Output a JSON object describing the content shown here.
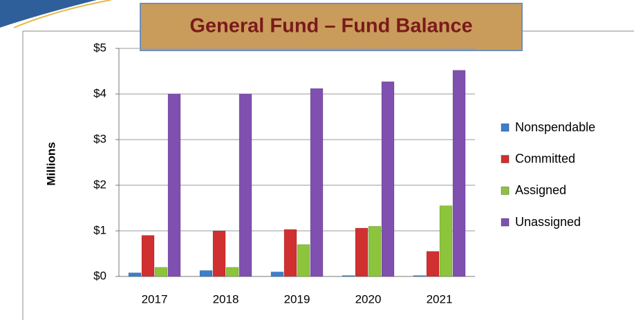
{
  "chart_data": {
    "type": "bar",
    "title": "General Fund – Fund Balance",
    "y_label": "Millions",
    "categories": [
      "2017",
      "2018",
      "2019",
      "2020",
      "2021"
    ],
    "series": [
      {
        "name": "Nonspendable",
        "color": "#3a7fd0",
        "values": [
          0.08,
          0.13,
          0.1,
          0.02,
          0.02
        ]
      },
      {
        "name": "Committed",
        "color": "#d03030",
        "values": [
          0.9,
          1.0,
          1.03,
          1.06,
          0.55
        ]
      },
      {
        "name": "Assigned",
        "color": "#8cc43c",
        "values": [
          0.2,
          0.2,
          0.7,
          1.1,
          1.55
        ]
      },
      {
        "name": "Unassigned",
        "color": "#7f50b0",
        "values": [
          4.0,
          4.0,
          4.12,
          4.27,
          4.52
        ]
      }
    ],
    "ylim": [
      0,
      5
    ],
    "yticks": [
      {
        "value": 0,
        "label": "$0"
      },
      {
        "value": 1,
        "label": "$1"
      },
      {
        "value": 2,
        "label": "$2"
      },
      {
        "value": 3,
        "label": "$3"
      },
      {
        "value": 4,
        "label": "$4"
      },
      {
        "value": 5,
        "label": "$5"
      }
    ],
    "grid": true,
    "legend": "right"
  }
}
